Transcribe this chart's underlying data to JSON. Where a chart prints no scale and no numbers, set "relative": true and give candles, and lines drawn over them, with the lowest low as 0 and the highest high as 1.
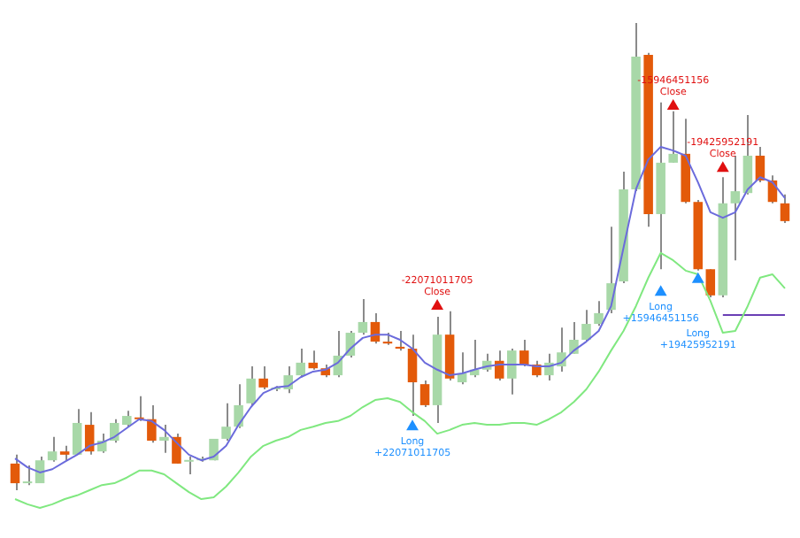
{
  "chart_data": {
    "type": "candlestick",
    "relative": true,
    "legend": false,
    "categories": [
      null,
      null,
      null,
      null,
      null,
      null,
      null,
      null,
      null,
      null,
      null,
      null,
      null,
      null,
      null,
      null,
      null,
      null,
      null,
      null,
      null,
      null,
      null,
      null,
      null,
      null,
      null,
      null,
      null,
      null,
      null,
      null,
      null,
      null,
      null,
      null,
      null,
      null,
      null,
      null,
      null,
      null,
      null,
      null,
      null,
      null,
      null,
      null,
      null,
      null,
      null,
      null,
      null,
      null,
      null,
      null,
      null,
      null,
      null,
      null,
      null,
      null,
      null
    ],
    "ohlc": [
      [
        0.057,
        0.076,
        0,
        0.015
      ],
      [
        0.015,
        0.053,
        0.011,
        0.015
      ],
      [
        0.015,
        0.072,
        0.015,
        0.064
      ],
      [
        0.064,
        0.114,
        0.061,
        0.083
      ],
      [
        0.083,
        0.095,
        0.064,
        0.076
      ],
      [
        0.076,
        0.174,
        0.076,
        0.144
      ],
      [
        0.14,
        0.167,
        0.076,
        0.083
      ],
      [
        0.083,
        0.121,
        0.08,
        0.106
      ],
      [
        0.106,
        0.152,
        0.102,
        0.144
      ],
      [
        0.14,
        0.17,
        0.136,
        0.159
      ],
      [
        0.155,
        0.201,
        0.148,
        0.152
      ],
      [
        0.152,
        0.182,
        0.102,
        0.106
      ],
      [
        0.106,
        0.14,
        0.08,
        0.114
      ],
      [
        0.114,
        0.121,
        0.057,
        0.057
      ],
      [
        0.061,
        0.072,
        0.034,
        0.061
      ],
      [
        0.064,
        0.072,
        0.061,
        0.064
      ],
      [
        0.064,
        0.11,
        0.064,
        0.11
      ],
      [
        0.11,
        0.186,
        0.106,
        0.136
      ],
      [
        0.136,
        0.227,
        0.133,
        0.182
      ],
      [
        0.186,
        0.265,
        0.182,
        0.239
      ],
      [
        0.239,
        0.265,
        0.216,
        0.22
      ],
      [
        0.216,
        0.223,
        0.212,
        0.216
      ],
      [
        0.216,
        0.265,
        0.208,
        0.246
      ],
      [
        0.246,
        0.303,
        0.242,
        0.273
      ],
      [
        0.273,
        0.299,
        0.258,
        0.261
      ],
      [
        0.261,
        0.269,
        0.242,
        0.246
      ],
      [
        0.246,
        0.341,
        0.242,
        0.288
      ],
      [
        0.288,
        0.341,
        0.284,
        0.337
      ],
      [
        0.337,
        0.409,
        0.333,
        0.36
      ],
      [
        0.36,
        0.379,
        0.314,
        0.318
      ],
      [
        0.318,
        0.337,
        0.311,
        0.314
      ],
      [
        0.307,
        0.341,
        0.299,
        0.303
      ],
      [
        0.303,
        0.333,
        0.159,
        0.231
      ],
      [
        0.227,
        0.235,
        0.178,
        0.182
      ],
      [
        0.182,
        0.371,
        0.144,
        0.333
      ],
      [
        0.333,
        0.383,
        0.235,
        0.239
      ],
      [
        0.231,
        0.295,
        0.227,
        0.25
      ],
      [
        0.246,
        0.322,
        0.242,
        0.258
      ],
      [
        0.258,
        0.292,
        0.254,
        0.277
      ],
      [
        0.277,
        0.299,
        0.235,
        0.239
      ],
      [
        0.239,
        0.303,
        0.205,
        0.299
      ],
      [
        0.299,
        0.322,
        0.265,
        0.269
      ],
      [
        0.269,
        0.277,
        0.242,
        0.246
      ],
      [
        0.246,
        0.292,
        0.235,
        0.273
      ],
      [
        0.265,
        0.348,
        0.254,
        0.295
      ],
      [
        0.292,
        0.36,
        0.292,
        0.322
      ],
      [
        0.322,
        0.386,
        0.318,
        0.356
      ],
      [
        0.356,
        0.405,
        0.352,
        0.379
      ],
      [
        0.386,
        0.564,
        0.379,
        0.443
      ],
      [
        0.447,
        0.682,
        0.443,
        0.644
      ],
      [
        0.644,
        1,
        0.64,
        0.928
      ],
      [
        0.932,
        0.936,
        0.564,
        0.591
      ],
      [
        0.591,
        0.83,
        0.473,
        0.701
      ],
      [
        0.701,
        0.811,
        0.701,
        0.72
      ],
      [
        0.72,
        0.795,
        0.614,
        0.617
      ],
      [
        0.617,
        0.621,
        0.47,
        0.473
      ],
      [
        0.473,
        0.473,
        0.413,
        0.417
      ],
      [
        0.417,
        0.67,
        0.413,
        0.614
      ],
      [
        0.614,
        0.716,
        0.492,
        0.64
      ],
      [
        0.636,
        0.803,
        0.633,
        0.716
      ],
      [
        0.716,
        0.735,
        0.659,
        0.663
      ],
      [
        0.663,
        0.674,
        0.614,
        0.617
      ],
      [
        0.614,
        0.633,
        0.572,
        0.576
      ]
    ],
    "colors": [
      "#e35a0a",
      "#a8d8a8",
      "#a8d8a8",
      "#a8d8a8",
      "#e35a0a",
      "#a8d8a8",
      "#e35a0a",
      "#a8d8a8",
      "#a8d8a8",
      "#a8d8a8",
      "#e35a0a",
      "#e35a0a",
      "#a8d8a8",
      "#e35a0a",
      "#a8d8a8",
      "#a8d8a8",
      "#a8d8a8",
      "#a8d8a8",
      "#a8d8a8",
      "#a8d8a8",
      "#e35a0a",
      "#a8d8a8",
      "#a8d8a8",
      "#a8d8a8",
      "#e35a0a",
      "#e35a0a",
      "#a8d8a8",
      "#a8d8a8",
      "#a8d8a8",
      "#e35a0a",
      "#e35a0a",
      "#e35a0a",
      "#e35a0a",
      "#e35a0a",
      "#a8d8a8",
      "#e35a0a",
      "#a8d8a8",
      "#a8d8a8",
      "#a8d8a8",
      "#e35a0a",
      "#a8d8a8",
      "#e35a0a",
      "#e35a0a",
      "#a8d8a8",
      "#a8d8a8",
      "#a8d8a8",
      "#a8d8a8",
      "#a8d8a8",
      "#a8d8a8",
      "#a8d8a8",
      "#a8d8a8",
      "#e35a0a",
      "#a8d8a8",
      "#a8d8a8",
      "#e35a0a",
      "#e35a0a",
      "#e35a0a",
      "#a8d8a8",
      "#a8d8a8",
      "#a8d8a8",
      "#e35a0a",
      "#e35a0a",
      "#e35a0a"
    ],
    "series": [
      {
        "type": "line",
        "color": "#6b6bdc",
        "values": [
          0.068,
          0.049,
          0.038,
          0.045,
          0.061,
          0.076,
          0.095,
          0.102,
          0.114,
          0.133,
          0.152,
          0.148,
          0.129,
          0.102,
          0.076,
          0.064,
          0.072,
          0.095,
          0.14,
          0.178,
          0.208,
          0.22,
          0.223,
          0.242,
          0.254,
          0.258,
          0.273,
          0.303,
          0.326,
          0.333,
          0.333,
          0.322,
          0.303,
          0.273,
          0.258,
          0.246,
          0.25,
          0.258,
          0.265,
          0.269,
          0.269,
          0.269,
          0.265,
          0.265,
          0.273,
          0.299,
          0.318,
          0.341,
          0.394,
          0.519,
          0.644,
          0.708,
          0.735,
          0.727,
          0.716,
          0.659,
          0.595,
          0.583,
          0.595,
          0.644,
          0.67,
          0.659,
          0.625
        ]
      },
      {
        "type": "line",
        "color": "#80e880",
        "values": [
          -0.019,
          -0.03,
          -0.038,
          -0.03,
          -0.019,
          -0.011,
          0,
          0.011,
          0.015,
          0.027,
          0.042,
          0.042,
          0.034,
          0.015,
          -0.004,
          -0.019,
          -0.015,
          0.008,
          0.038,
          0.072,
          0.095,
          0.106,
          0.114,
          0.129,
          0.136,
          0.144,
          0.148,
          0.159,
          0.178,
          0.193,
          0.197,
          0.189,
          0.167,
          0.148,
          0.121,
          0.129,
          0.14,
          0.144,
          0.14,
          0.14,
          0.144,
          0.144,
          0.14,
          0.152,
          0.167,
          0.189,
          0.216,
          0.254,
          0.299,
          0.341,
          0.394,
          0.455,
          0.508,
          0.492,
          0.47,
          0.462,
          0.405,
          0.337,
          0.341,
          0.394,
          0.455,
          0.462,
          0.432
        ]
      },
      {
        "type": "line",
        "color": "#6a3fb5",
        "values": [
          null,
          null,
          null,
          null,
          null,
          null,
          null,
          null,
          null,
          null,
          null,
          null,
          null,
          null,
          null,
          null,
          null,
          null,
          null,
          null,
          null,
          null,
          null,
          null,
          null,
          null,
          null,
          null,
          null,
          null,
          null,
          null,
          null,
          null,
          null,
          null,
          null,
          null,
          null,
          null,
          null,
          null,
          null,
          null,
          null,
          null,
          null,
          null,
          null,
          null,
          null,
          null,
          null,
          null,
          null,
          null,
          null,
          0.375,
          0.375,
          0.375,
          0.375,
          0.375,
          0.375
        ]
      },
      {
        "type": "scatter",
        "marker": "triangle",
        "color": "#e01010",
        "values": [
          null,
          null,
          null,
          null,
          null,
          null,
          null,
          null,
          null,
          null,
          null,
          null,
          null,
          null,
          null,
          null,
          null,
          null,
          null,
          null,
          null,
          null,
          null,
          null,
          null,
          null,
          null,
          null,
          null,
          null,
          null,
          null,
          null,
          null,
          0.394,
          null,
          null,
          null,
          null,
          null,
          null,
          null,
          null,
          null,
          null,
          null,
          null,
          null,
          null,
          null,
          null,
          null,
          null,
          0.822,
          null,
          null,
          null,
          0.689,
          null,
          null,
          null,
          null,
          null
        ]
      },
      {
        "type": "scatter",
        "marker": "triangle",
        "color": "#1e90ff",
        "values": [
          null,
          null,
          null,
          null,
          null,
          null,
          null,
          null,
          null,
          null,
          null,
          null,
          null,
          null,
          null,
          null,
          null,
          null,
          null,
          null,
          null,
          null,
          null,
          null,
          null,
          null,
          null,
          null,
          null,
          null,
          null,
          null,
          0.136,
          null,
          null,
          null,
          null,
          null,
          null,
          null,
          null,
          null,
          null,
          null,
          null,
          null,
          null,
          null,
          null,
          null,
          null,
          null,
          0.424,
          null,
          null,
          0.451,
          null,
          null,
          null,
          null,
          null,
          null,
          null
        ]
      }
    ],
    "annotations": [
      "-22071011705 Close",
      "Long +22071011705",
      "-15946451156 Close",
      "Long +15946451156",
      "-19425952191 Close",
      "Long +19425952191"
    ]
  }
}
